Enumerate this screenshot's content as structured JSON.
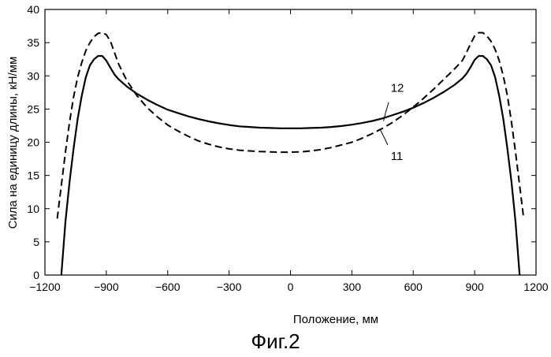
{
  "chart_data": {
    "type": "line",
    "title": "",
    "xlabel": "Положение,    мм",
    "ylabel": "Сила на единицу длины, кН/мм",
    "xlim": [
      -1200,
      1200
    ],
    "ylim": [
      0,
      40
    ],
    "xticks": [
      -1200,
      -900,
      -600,
      -300,
      0,
      300,
      600,
      900,
      1200
    ],
    "xtick_labels": [
      "−1200",
      "−900",
      "−600",
      "−300",
      "0",
      "300",
      "600",
      "900",
      "1200"
    ],
    "yticks": [
      0,
      5,
      10,
      15,
      20,
      25,
      30,
      35,
      40
    ],
    "ytick_labels": [
      "0",
      "5",
      "10",
      "15",
      "20",
      "25",
      "30",
      "35",
      "40"
    ],
    "grid": false,
    "legend": "none",
    "series": [
      {
        "id": "curve-12",
        "style": "solid",
        "color": "#000000",
        "x": [
          -1120,
          -1100,
          -1080,
          -1060,
          -1040,
          -1020,
          -1000,
          -980,
          -960,
          -940,
          -920,
          -900,
          -880,
          -860,
          -840,
          -800,
          -750,
          -700,
          -650,
          -600,
          -550,
          -500,
          -450,
          -400,
          -350,
          -300,
          -250,
          -200,
          -150,
          -100,
          -50,
          0,
          50,
          100,
          150,
          200,
          250,
          300,
          350,
          400,
          450,
          500,
          550,
          600,
          650,
          700,
          750,
          800,
          840,
          860,
          880,
          900,
          920,
          940,
          960,
          980,
          1000,
          1020,
          1040,
          1060,
          1080,
          1100,
          1120
        ],
        "y": [
          0,
          8,
          14,
          19,
          23.5,
          27,
          29.8,
          31.6,
          32.5,
          33.0,
          33.0,
          32.3,
          31.2,
          30.2,
          29.5,
          28.4,
          27.3,
          26.4,
          25.6,
          24.9,
          24.4,
          23.9,
          23.5,
          23.15,
          22.85,
          22.6,
          22.4,
          22.3,
          22.2,
          22.15,
          22.1,
          22.1,
          22.1,
          22.15,
          22.2,
          22.3,
          22.45,
          22.65,
          22.9,
          23.2,
          23.6,
          24.1,
          24.6,
          25.2,
          25.9,
          26.7,
          27.6,
          28.6,
          29.6,
          30.3,
          31.3,
          32.4,
          33.0,
          33.0,
          32.5,
          31.6,
          29.8,
          27.0,
          23.5,
          19.0,
          14.0,
          8.0,
          0
        ]
      },
      {
        "id": "curve-11",
        "style": "dashed",
        "color": "#000000",
        "x": [
          -1140,
          -1120,
          -1100,
          -1080,
          -1060,
          -1040,
          -1020,
          -1000,
          -980,
          -960,
          -940,
          -920,
          -900,
          -880,
          -860,
          -840,
          -800,
          -750,
          -700,
          -650,
          -600,
          -550,
          -500,
          -450,
          -400,
          -350,
          -300,
          -250,
          -200,
          -150,
          -100,
          -50,
          0,
          50,
          100,
          150,
          200,
          250,
          300,
          350,
          400,
          450,
          500,
          550,
          600,
          650,
          700,
          750,
          800,
          840,
          860,
          880,
          900,
          920,
          940,
          960,
          980,
          1000,
          1020,
          1040,
          1060,
          1080,
          1100,
          1120,
          1140
        ],
        "y": [
          8.5,
          13.5,
          18.5,
          23,
          26.8,
          29.8,
          32.0,
          33.8,
          35.0,
          35.9,
          36.4,
          36.5,
          36.2,
          35.2,
          33.5,
          31.8,
          29.3,
          27.0,
          25.2,
          23.8,
          22.6,
          21.7,
          20.9,
          20.2,
          19.7,
          19.3,
          19.0,
          18.8,
          18.7,
          18.6,
          18.55,
          18.5,
          18.5,
          18.55,
          18.7,
          18.9,
          19.2,
          19.6,
          20.0,
          20.6,
          21.3,
          22.1,
          23.0,
          24.1,
          25.3,
          26.6,
          28.0,
          29.5,
          31.0,
          32.3,
          33.5,
          34.8,
          36.0,
          36.5,
          36.5,
          36.0,
          35.2,
          34.0,
          32.3,
          30.0,
          27.0,
          23.0,
          18.5,
          13.5,
          8.5
        ]
      }
    ],
    "annotations": [
      {
        "text": "12",
        "x": 490,
        "y": 27.6,
        "leader_x": [
          455,
          480
        ],
        "leader_y": [
          23.2,
          26.0
        ]
      },
      {
        "text": "11",
        "x": 490,
        "y": 17.3,
        "leader_x": [
          440,
          475
        ],
        "leader_y": [
          21.8,
          19.6
        ]
      }
    ]
  },
  "caption": "Фиг.2"
}
